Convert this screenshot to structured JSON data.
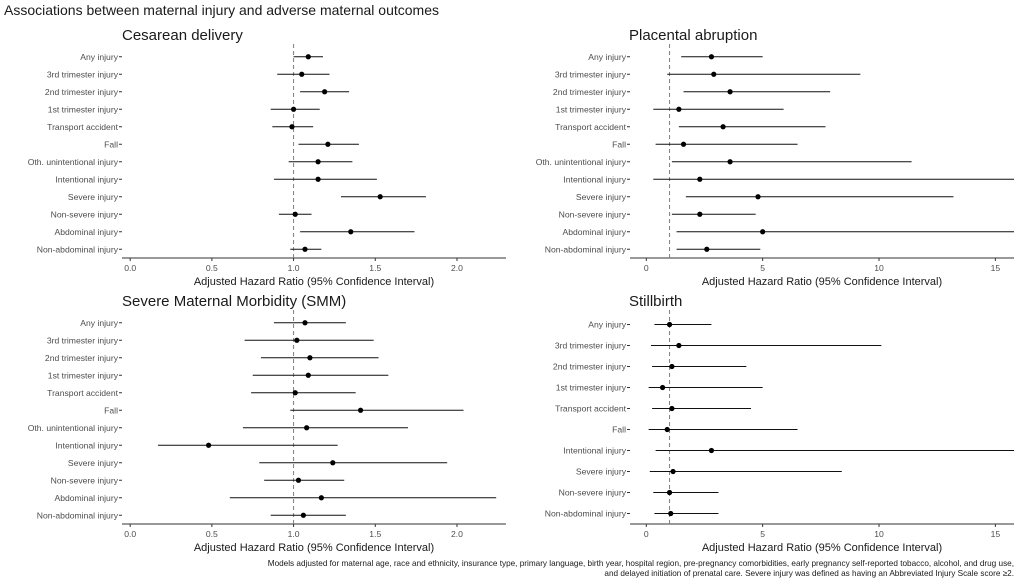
{
  "figure": {
    "title": "Associations between maternal injury and adverse maternal outcomes",
    "footnote_lines": [
      "Models adjusted for maternal age, race and ethnicity, insurance type, primary language, birth year, hospital region, pre-pregnancy comorbidities, early pregnancy self-reported tobacco, alcohol, and drug use,",
      "and delayed initiation of prenatal care. Severe injury was defined as having an Abbreviated Injury Scale score ≥2."
    ]
  },
  "chart_data": [
    {
      "type": "forest",
      "title": "Cesarean delivery",
      "xlabel": "Adjusted Hazard Ratio (95% Confidence Interval)",
      "xlim": [
        -0.05,
        2.3
      ],
      "xticks": [
        0.0,
        0.5,
        1.0,
        1.5,
        2.0
      ],
      "xtick_labels": [
        "0.0",
        "0.5",
        "1.0",
        "1.5",
        "2.0"
      ],
      "reference_line": 1.0,
      "rows": [
        {
          "label": "Any injury",
          "est": 1.09,
          "lo": 1.0,
          "hi": 1.18
        },
        {
          "label": "3rd trimester injury",
          "est": 1.05,
          "lo": 0.9,
          "hi": 1.22
        },
        {
          "label": "2nd trimester injury",
          "est": 1.19,
          "lo": 1.04,
          "hi": 1.34
        },
        {
          "label": "1st trimester injury",
          "est": 1.0,
          "lo": 0.86,
          "hi": 1.16
        },
        {
          "label": "Transport accident",
          "est": 0.99,
          "lo": 0.87,
          "hi": 1.12
        },
        {
          "label": "Fall",
          "est": 1.21,
          "lo": 1.03,
          "hi": 1.4
        },
        {
          "label": "Oth. unintentional injury",
          "est": 1.15,
          "lo": 0.97,
          "hi": 1.36
        },
        {
          "label": "Intentional injury",
          "est": 1.15,
          "lo": 0.88,
          "hi": 1.51
        },
        {
          "label": "Severe injury",
          "est": 1.53,
          "lo": 1.29,
          "hi": 1.81
        },
        {
          "label": "Non-severe injury",
          "est": 1.01,
          "lo": 0.91,
          "hi": 1.11
        },
        {
          "label": "Abdominal injury",
          "est": 1.35,
          "lo": 1.04,
          "hi": 1.74
        },
        {
          "label": "Non-abdominal injury",
          "est": 1.07,
          "lo": 0.98,
          "hi": 1.17
        }
      ]
    },
    {
      "type": "forest",
      "title": "Placental abruption",
      "xlabel": "Adjusted Hazard Ratio (95% Confidence Interval)",
      "xlim": [
        -0.7,
        15.8
      ],
      "xticks": [
        0,
        5,
        10,
        15
      ],
      "xtick_labels": [
        "0",
        "5",
        "10",
        "15"
      ],
      "reference_line": 1.0,
      "rows": [
        {
          "label": "Any injury",
          "est": 2.8,
          "lo": 1.5,
          "hi": 5.0
        },
        {
          "label": "3rd trimester injury",
          "est": 2.9,
          "lo": 0.9,
          "hi": 9.2
        },
        {
          "label": "2nd trimester injury",
          "est": 3.6,
          "lo": 1.6,
          "hi": 7.9
        },
        {
          "label": "1st trimester injury",
          "est": 1.4,
          "lo": 0.3,
          "hi": 5.9
        },
        {
          "label": "Transport accident",
          "est": 3.3,
          "lo": 1.4,
          "hi": 7.7
        },
        {
          "label": "Fall",
          "est": 1.6,
          "lo": 0.4,
          "hi": 6.5
        },
        {
          "label": "Oth. unintentional injury",
          "est": 3.6,
          "lo": 1.1,
          "hi": 11.4
        },
        {
          "label": "Intentional injury",
          "est": 2.3,
          "lo": 0.3,
          "hi": 15.8
        },
        {
          "label": "Severe injury",
          "est": 4.8,
          "lo": 1.7,
          "hi": 13.2
        },
        {
          "label": "Non-severe injury",
          "est": 2.3,
          "lo": 1.1,
          "hi": 4.7
        },
        {
          "label": "Abdominal injury",
          "est": 5.0,
          "lo": 1.3,
          "hi": 15.8
        },
        {
          "label": "Non-abdominal injury",
          "est": 2.6,
          "lo": 1.3,
          "hi": 4.9
        }
      ]
    },
    {
      "type": "forest",
      "title": "Severe Maternal Morbidity (SMM)",
      "xlabel": "Adjusted Hazard Ratio (95% Confidence Interval)",
      "xlim": [
        -0.05,
        2.3
      ],
      "xticks": [
        0.0,
        0.5,
        1.0,
        1.5,
        2.0
      ],
      "xtick_labels": [
        "0.0",
        "0.5",
        "1.0",
        "1.5",
        "2.0"
      ],
      "reference_line": 1.0,
      "rows": [
        {
          "label": "Any injury",
          "est": 1.07,
          "lo": 0.88,
          "hi": 1.32
        },
        {
          "label": "3rd trimester injury",
          "est": 1.02,
          "lo": 0.7,
          "hi": 1.49
        },
        {
          "label": "2nd trimester injury",
          "est": 1.1,
          "lo": 0.8,
          "hi": 1.52
        },
        {
          "label": "1st trimester injury",
          "est": 1.09,
          "lo": 0.75,
          "hi": 1.58
        },
        {
          "label": "Transport accident",
          "est": 1.01,
          "lo": 0.74,
          "hi": 1.38
        },
        {
          "label": "Fall",
          "est": 1.41,
          "lo": 0.98,
          "hi": 2.04
        },
        {
          "label": "Oth. unintentional injury",
          "est": 1.08,
          "lo": 0.69,
          "hi": 1.7
        },
        {
          "label": "Intentional injury",
          "est": 0.48,
          "lo": 0.17,
          "hi": 1.27
        },
        {
          "label": "Severe injury",
          "est": 1.24,
          "lo": 0.79,
          "hi": 1.94
        },
        {
          "label": "Non-severe injury",
          "est": 1.03,
          "lo": 0.82,
          "hi": 1.31
        },
        {
          "label": "Abdominal injury",
          "est": 1.17,
          "lo": 0.61,
          "hi": 2.24
        },
        {
          "label": "Non-abdominal injury",
          "est": 1.06,
          "lo": 0.86,
          "hi": 1.32
        }
      ]
    },
    {
      "type": "forest",
      "title": "Stillbirth",
      "xlabel": "Adjusted Hazard Ratio (95% Confidence Interval)",
      "xlim": [
        -0.7,
        15.8
      ],
      "xticks": [
        0,
        5,
        10,
        15
      ],
      "xtick_labels": [
        "0",
        "5",
        "10",
        "15"
      ],
      "reference_line": 1.0,
      "rows": [
        {
          "label": "Any injury",
          "est": 1.0,
          "lo": 0.35,
          "hi": 2.8
        },
        {
          "label": "3rd trimester injury",
          "est": 1.4,
          "lo": 0.2,
          "hi": 10.1
        },
        {
          "label": "2nd trimester injury",
          "est": 1.1,
          "lo": 0.25,
          "hi": 4.3
        },
        {
          "label": "1st trimester injury",
          "est": 0.7,
          "lo": 0.1,
          "hi": 5.0
        },
        {
          "label": "Transport accident",
          "est": 1.1,
          "lo": 0.25,
          "hi": 4.5
        },
        {
          "label": "Fall",
          "est": 0.9,
          "lo": 0.1,
          "hi": 6.5
        },
        {
          "label": "Intentional injury",
          "est": 2.8,
          "lo": 0.4,
          "hi": 15.8
        },
        {
          "label": "Severe injury",
          "est": 1.15,
          "lo": 0.15,
          "hi": 8.4
        },
        {
          "label": "Non-severe injury",
          "est": 1.0,
          "lo": 0.3,
          "hi": 3.1
        },
        {
          "label": "Non-abdominal injury",
          "est": 1.05,
          "lo": 0.35,
          "hi": 3.1
        }
      ]
    }
  ]
}
